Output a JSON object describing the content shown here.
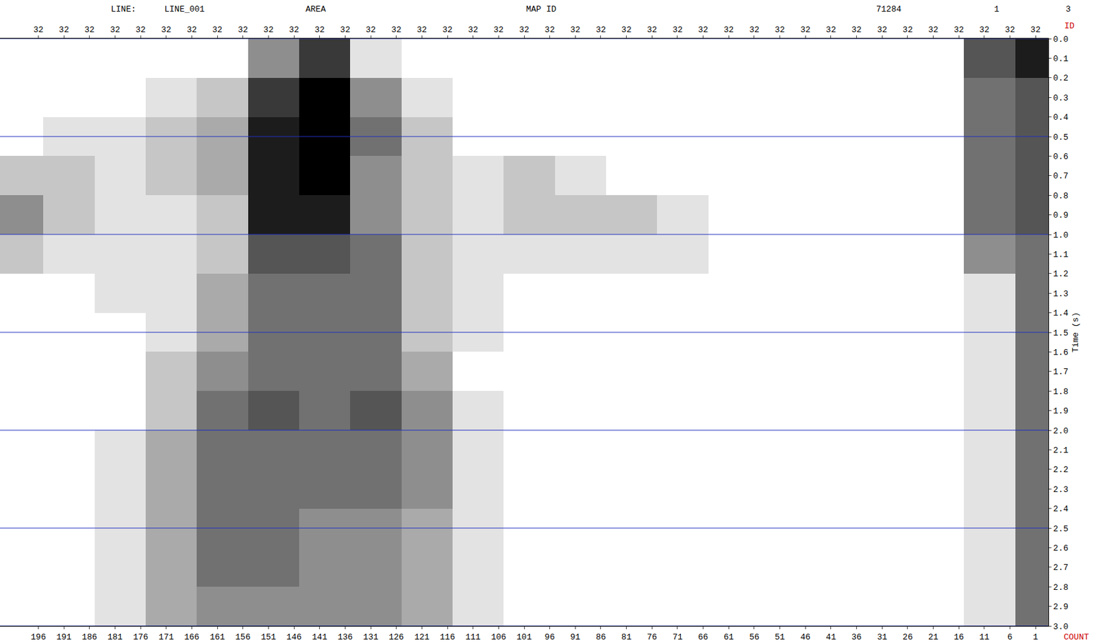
{
  "chart_data": {
    "type": "heatmap",
    "annotations": [
      "LINE:",
      "LINE_001",
      "AREA",
      "MAP ID",
      "71284",
      "1",
      "3",
      "ID",
      "COUNT"
    ],
    "ylabel": "Time (s)",
    "grid": true,
    "xlim": [
      203.5,
      -1.5
    ],
    "xticks": [
      196,
      191,
      186,
      181,
      176,
      171,
      166,
      161,
      156,
      151,
      146,
      141,
      136,
      131,
      126,
      121,
      116,
      111,
      106,
      101,
      96,
      91,
      86,
      81,
      76,
      71,
      66,
      61,
      56,
      51,
      46,
      41,
      36,
      31,
      26,
      21,
      16,
      11,
      6,
      1
    ],
    "x2ticks": [
      {
        "value": 196,
        "label": "32"
      },
      {
        "value": 191,
        "label": "32"
      },
      {
        "value": 186,
        "label": "32"
      },
      {
        "value": 181,
        "label": "32"
      },
      {
        "value": 176,
        "label": "32"
      },
      {
        "value": 171,
        "label": "32"
      },
      {
        "value": 166,
        "label": "32"
      },
      {
        "value": 161,
        "label": "32"
      },
      {
        "value": 156,
        "label": "32"
      },
      {
        "value": 151,
        "label": "32"
      },
      {
        "value": 146,
        "label": "32"
      },
      {
        "value": 141,
        "label": "32"
      },
      {
        "value": 136,
        "label": "32"
      },
      {
        "value": 131,
        "label": "32"
      },
      {
        "value": 126,
        "label": "32"
      },
      {
        "value": 121,
        "label": "32"
      },
      {
        "value": 116,
        "label": "32"
      },
      {
        "value": 111,
        "label": "32"
      },
      {
        "value": 106,
        "label": "32"
      },
      {
        "value": 101,
        "label": "32"
      },
      {
        "value": 96,
        "label": "32"
      },
      {
        "value": 91,
        "label": "32"
      },
      {
        "value": 86,
        "label": "32"
      },
      {
        "value": 81,
        "label": "32"
      },
      {
        "value": 76,
        "label": "32"
      },
      {
        "value": 71,
        "label": "32"
      },
      {
        "value": 66,
        "label": "32"
      },
      {
        "value": 61,
        "label": "32"
      },
      {
        "value": 56,
        "label": "32"
      },
      {
        "value": 51,
        "label": "32"
      },
      {
        "value": 46,
        "label": "32"
      },
      {
        "value": 41,
        "label": "32"
      },
      {
        "value": 36,
        "label": "32"
      },
      {
        "value": 31,
        "label": "32"
      },
      {
        "value": 26,
        "label": "32"
      },
      {
        "value": 21,
        "label": "32"
      },
      {
        "value": 16,
        "label": "32"
      },
      {
        "value": 11,
        "label": "32"
      },
      {
        "value": 6,
        "label": "32"
      },
      {
        "value": 1,
        "label": "32"
      }
    ],
    "ylim": [
      3.0,
      0.0
    ],
    "yticks": [
      {
        "value": 0,
        "label": "0.0"
      },
      0.1,
      0.2,
      0.3,
      0.4,
      0.5,
      0.6,
      0.7,
      0.8,
      0.9,
      {
        "value": 1,
        "label": "1.0"
      },
      1.1,
      1.2,
      1.3,
      1.4,
      1.5,
      1.6,
      1.7,
      1.8,
      1.9,
      {
        "value": 2,
        "label": "2.0"
      },
      2.1,
      2.2,
      2.3,
      2.4,
      2.5,
      2.6,
      2.7,
      2.8,
      2.9,
      {
        "value": 3,
        "label": "3.0"
      }
    ],
    "x": [
      200,
      190,
      180,
      170,
      160,
      150,
      140,
      130,
      120,
      110,
      100,
      90,
      80,
      70,
      60,
      50,
      40,
      30,
      20,
      10,
      0
    ],
    "y": [
      0.1,
      0.3,
      0.5,
      0.7,
      0.9,
      1.1,
      1.3,
      1.5,
      1.7,
      1.9,
      2.1,
      2.3,
      2.5,
      2.7,
      2.9
    ],
    "zlim": [
      0,
      9
    ],
    "cells": [
      [
        0,
        0,
        0,
        0,
        0,
        4,
        7,
        1,
        0,
        0,
        0,
        0,
        0,
        0,
        0,
        0,
        0,
        0,
        0,
        6,
        8
      ],
      [
        0,
        0,
        0,
        1,
        2,
        7,
        9,
        4,
        1,
        0,
        0,
        0,
        0,
        0,
        0,
        0,
        0,
        0,
        0,
        5,
        6
      ],
      [
        0,
        1,
        1,
        2,
        3,
        8,
        9,
        5,
        2,
        0,
        0,
        0,
        0,
        0,
        0,
        0,
        0,
        0,
        0,
        5,
        6
      ],
      [
        2,
        2,
        1,
        2,
        3,
        8,
        9,
        4,
        2,
        1,
        2,
        1,
        0,
        0,
        0,
        0,
        0,
        0,
        0,
        5,
        6
      ],
      [
        4,
        2,
        1,
        1,
        2,
        8,
        8,
        4,
        2,
        1,
        2,
        2,
        2,
        1,
        0,
        0,
        0,
        0,
        0,
        5,
        6
      ],
      [
        2,
        1,
        1,
        1,
        2,
        6,
        6,
        5,
        2,
        1,
        1,
        1,
        1,
        1,
        0,
        0,
        0,
        0,
        0,
        4,
        5
      ],
      [
        0,
        0,
        1,
        1,
        3,
        5,
        5,
        5,
        2,
        1,
        0,
        0,
        0,
        0,
        0,
        0,
        0,
        0,
        0,
        1,
        5
      ],
      [
        0,
        0,
        0,
        1,
        3,
        5,
        5,
        5,
        2,
        1,
        0,
        0,
        0,
        0,
        0,
        0,
        0,
        0,
        0,
        1,
        5
      ],
      [
        0,
        0,
        0,
        2,
        4,
        5,
        5,
        5,
        3,
        0,
        0,
        0,
        0,
        0,
        0,
        0,
        0,
        0,
        0,
        1,
        5
      ],
      [
        0,
        0,
        0,
        2,
        5,
        6,
        5,
        6,
        4,
        1,
        0,
        0,
        0,
        0,
        0,
        0,
        0,
        0,
        0,
        1,
        5
      ],
      [
        0,
        0,
        1,
        3,
        5,
        5,
        5,
        5,
        4,
        1,
        0,
        0,
        0,
        0,
        0,
        0,
        0,
        0,
        0,
        1,
        5
      ],
      [
        0,
        0,
        1,
        3,
        5,
        5,
        5,
        5,
        4,
        1,
        0,
        0,
        0,
        0,
        0,
        0,
        0,
        0,
        0,
        1,
        5
      ],
      [
        0,
        0,
        1,
        3,
        5,
        5,
        4,
        4,
        3,
        1,
        0,
        0,
        0,
        0,
        0,
        0,
        0,
        0,
        0,
        1,
        5
      ],
      [
        0,
        0,
        1,
        3,
        5,
        5,
        4,
        4,
        3,
        1,
        0,
        0,
        0,
        0,
        0,
        0,
        0,
        0,
        0,
        1,
        5
      ],
      [
        0,
        0,
        1,
        3,
        4,
        4,
        4,
        4,
        3,
        1,
        0,
        0,
        0,
        0,
        0,
        0,
        0,
        0,
        0,
        1,
        5
      ]
    ]
  }
}
